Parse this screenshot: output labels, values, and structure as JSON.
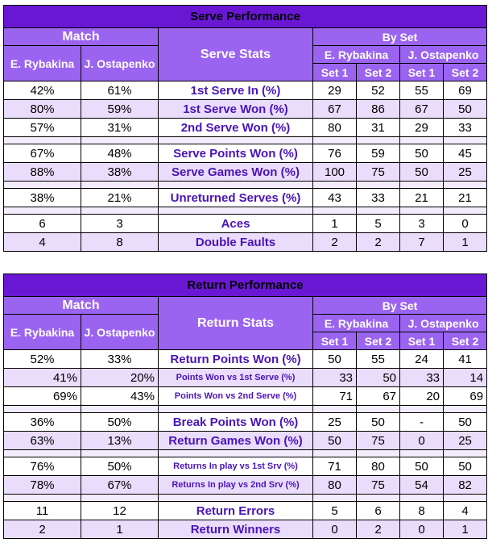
{
  "serve": {
    "title": "Serve Performance",
    "match_label": "Match",
    "stats_label": "Serve Stats",
    "byset_label": "By Set",
    "player1": "E. Rybakina",
    "player2": "J. Ostapenko",
    "set1": "Set 1",
    "set2": "Set 2",
    "groups": [
      [
        {
          "stat": "1st Serve In (%)",
          "p1": "42%",
          "p2": "61%",
          "p1s1": "29",
          "p1s2": "52",
          "p2s1": "55",
          "p2s2": "69"
        },
        {
          "stat": "1st Serve Won (%)",
          "p1": "80%",
          "p2": "59%",
          "p1s1": "67",
          "p1s2": "86",
          "p2s1": "67",
          "p2s2": "50"
        },
        {
          "stat": "2nd Serve Won (%)",
          "p1": "57%",
          "p2": "31%",
          "p1s1": "80",
          "p1s2": "31",
          "p2s1": "29",
          "p2s2": "33"
        }
      ],
      [
        {
          "stat": "Serve Points Won (%)",
          "p1": "67%",
          "p2": "48%",
          "p1s1": "76",
          "p1s2": "59",
          "p2s1": "50",
          "p2s2": "45"
        },
        {
          "stat": "Serve Games Won (%)",
          "p1": "88%",
          "p2": "38%",
          "p1s1": "100",
          "p1s2": "75",
          "p2s1": "50",
          "p2s2": "25"
        }
      ],
      [
        {
          "stat": "Unreturned Serves (%)",
          "p1": "38%",
          "p2": "21%",
          "p1s1": "43",
          "p1s2": "33",
          "p2s1": "21",
          "p2s2": "21"
        }
      ],
      [
        {
          "stat": "Aces",
          "p1": "6",
          "p2": "3",
          "p1s1": "1",
          "p1s2": "5",
          "p2s1": "3",
          "p2s2": "0"
        },
        {
          "stat": "Double Faults",
          "p1": "4",
          "p2": "8",
          "p1s1": "2",
          "p1s2": "2",
          "p2s1": "7",
          "p2s2": "1"
        }
      ]
    ]
  },
  "return": {
    "title": "Return Performance",
    "match_label": "Match",
    "stats_label": "Return Stats",
    "byset_label": "By Set",
    "player1": "E. Rybakina",
    "player2": "J. Ostapenko",
    "set1": "Set 1",
    "set2": "Set 2",
    "groups": [
      [
        {
          "stat": "Return Points Won (%)",
          "p1": "52%",
          "p2": "33%",
          "p1s1": "50",
          "p1s2": "55",
          "p2s1": "24",
          "p2s2": "41"
        },
        {
          "stat": "Points Won vs 1st Serve (%)",
          "p1": "41%",
          "p2": "20%",
          "p1s1": "33",
          "p1s2": "50",
          "p2s1": "33",
          "p2s2": "14",
          "sub": true
        },
        {
          "stat": "Points Won vs 2nd Serve (%)",
          "p1": "69%",
          "p2": "43%",
          "p1s1": "71",
          "p1s2": "67",
          "p2s1": "20",
          "p2s2": "69",
          "sub": true
        }
      ],
      [
        {
          "stat": "Break Points Won (%)",
          "p1": "36%",
          "p2": "50%",
          "p1s1": "25",
          "p1s2": "50",
          "p2s1": "-",
          "p2s2": "50"
        },
        {
          "stat": "Return Games Won (%)",
          "p1": "63%",
          "p2": "13%",
          "p1s1": "50",
          "p1s2": "75",
          "p2s1": "0",
          "p2s2": "25"
        }
      ],
      [
        {
          "stat": "Returns In play vs 1st Srv (%)",
          "p1": "76%",
          "p2": "50%",
          "p1s1": "71",
          "p1s2": "80",
          "p2s1": "50",
          "p2s2": "50",
          "small": true
        },
        {
          "stat": "Returns In play vs 2nd Srv (%)",
          "p1": "78%",
          "p2": "67%",
          "p1s1": "80",
          "p1s2": "75",
          "p2s1": "54",
          "p2s2": "82",
          "small": true
        }
      ],
      [
        {
          "stat": "Return Errors",
          "p1": "11",
          "p2": "12",
          "p1s1": "5",
          "p1s2": "6",
          "p2s1": "8",
          "p2s2": "4"
        },
        {
          "stat": "Return Winners",
          "p1": "2",
          "p2": "1",
          "p1s1": "0",
          "p1s2": "2",
          "p2s1": "0",
          "p2s2": "1"
        }
      ]
    ]
  }
}
